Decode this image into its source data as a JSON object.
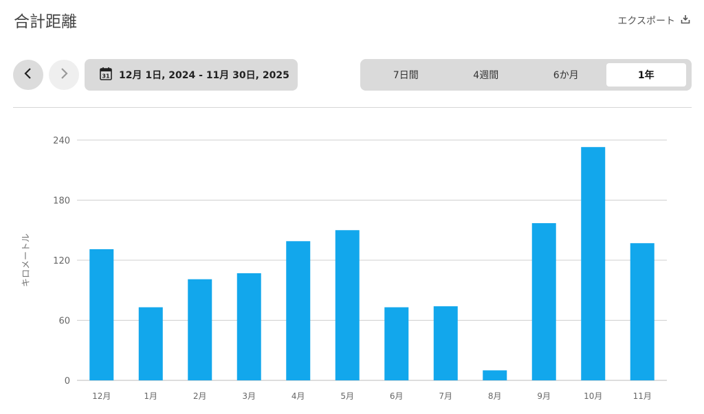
{
  "header": {
    "title": "合計距離",
    "export_label": "エクスポート"
  },
  "date_range": {
    "text": "12月 1日, 2024 - 11月 30日, 2025",
    "calendar_day": "31"
  },
  "periods": [
    {
      "label": "7日間",
      "active": false
    },
    {
      "label": "4週間",
      "active": false
    },
    {
      "label": "6か月",
      "active": false
    },
    {
      "label": "1年",
      "active": true
    }
  ],
  "colors": {
    "bar": "#12a7ec",
    "grid": "#cfcfcf",
    "accent_bg": "#dadada"
  },
  "chart_data": {
    "type": "bar",
    "title": "",
    "xlabel": "",
    "ylabel": "キロメートル",
    "ylim": [
      0,
      240
    ],
    "yticks": [
      0,
      60,
      120,
      180,
      240
    ],
    "grid": true,
    "categories": [
      "12月",
      "1月",
      "2月",
      "3月",
      "4月",
      "5月",
      "6月",
      "7月",
      "8月",
      "9月",
      "10月",
      "11月"
    ],
    "values": [
      131,
      73,
      101,
      107,
      139,
      150,
      73,
      74,
      10,
      157,
      233,
      137
    ]
  }
}
